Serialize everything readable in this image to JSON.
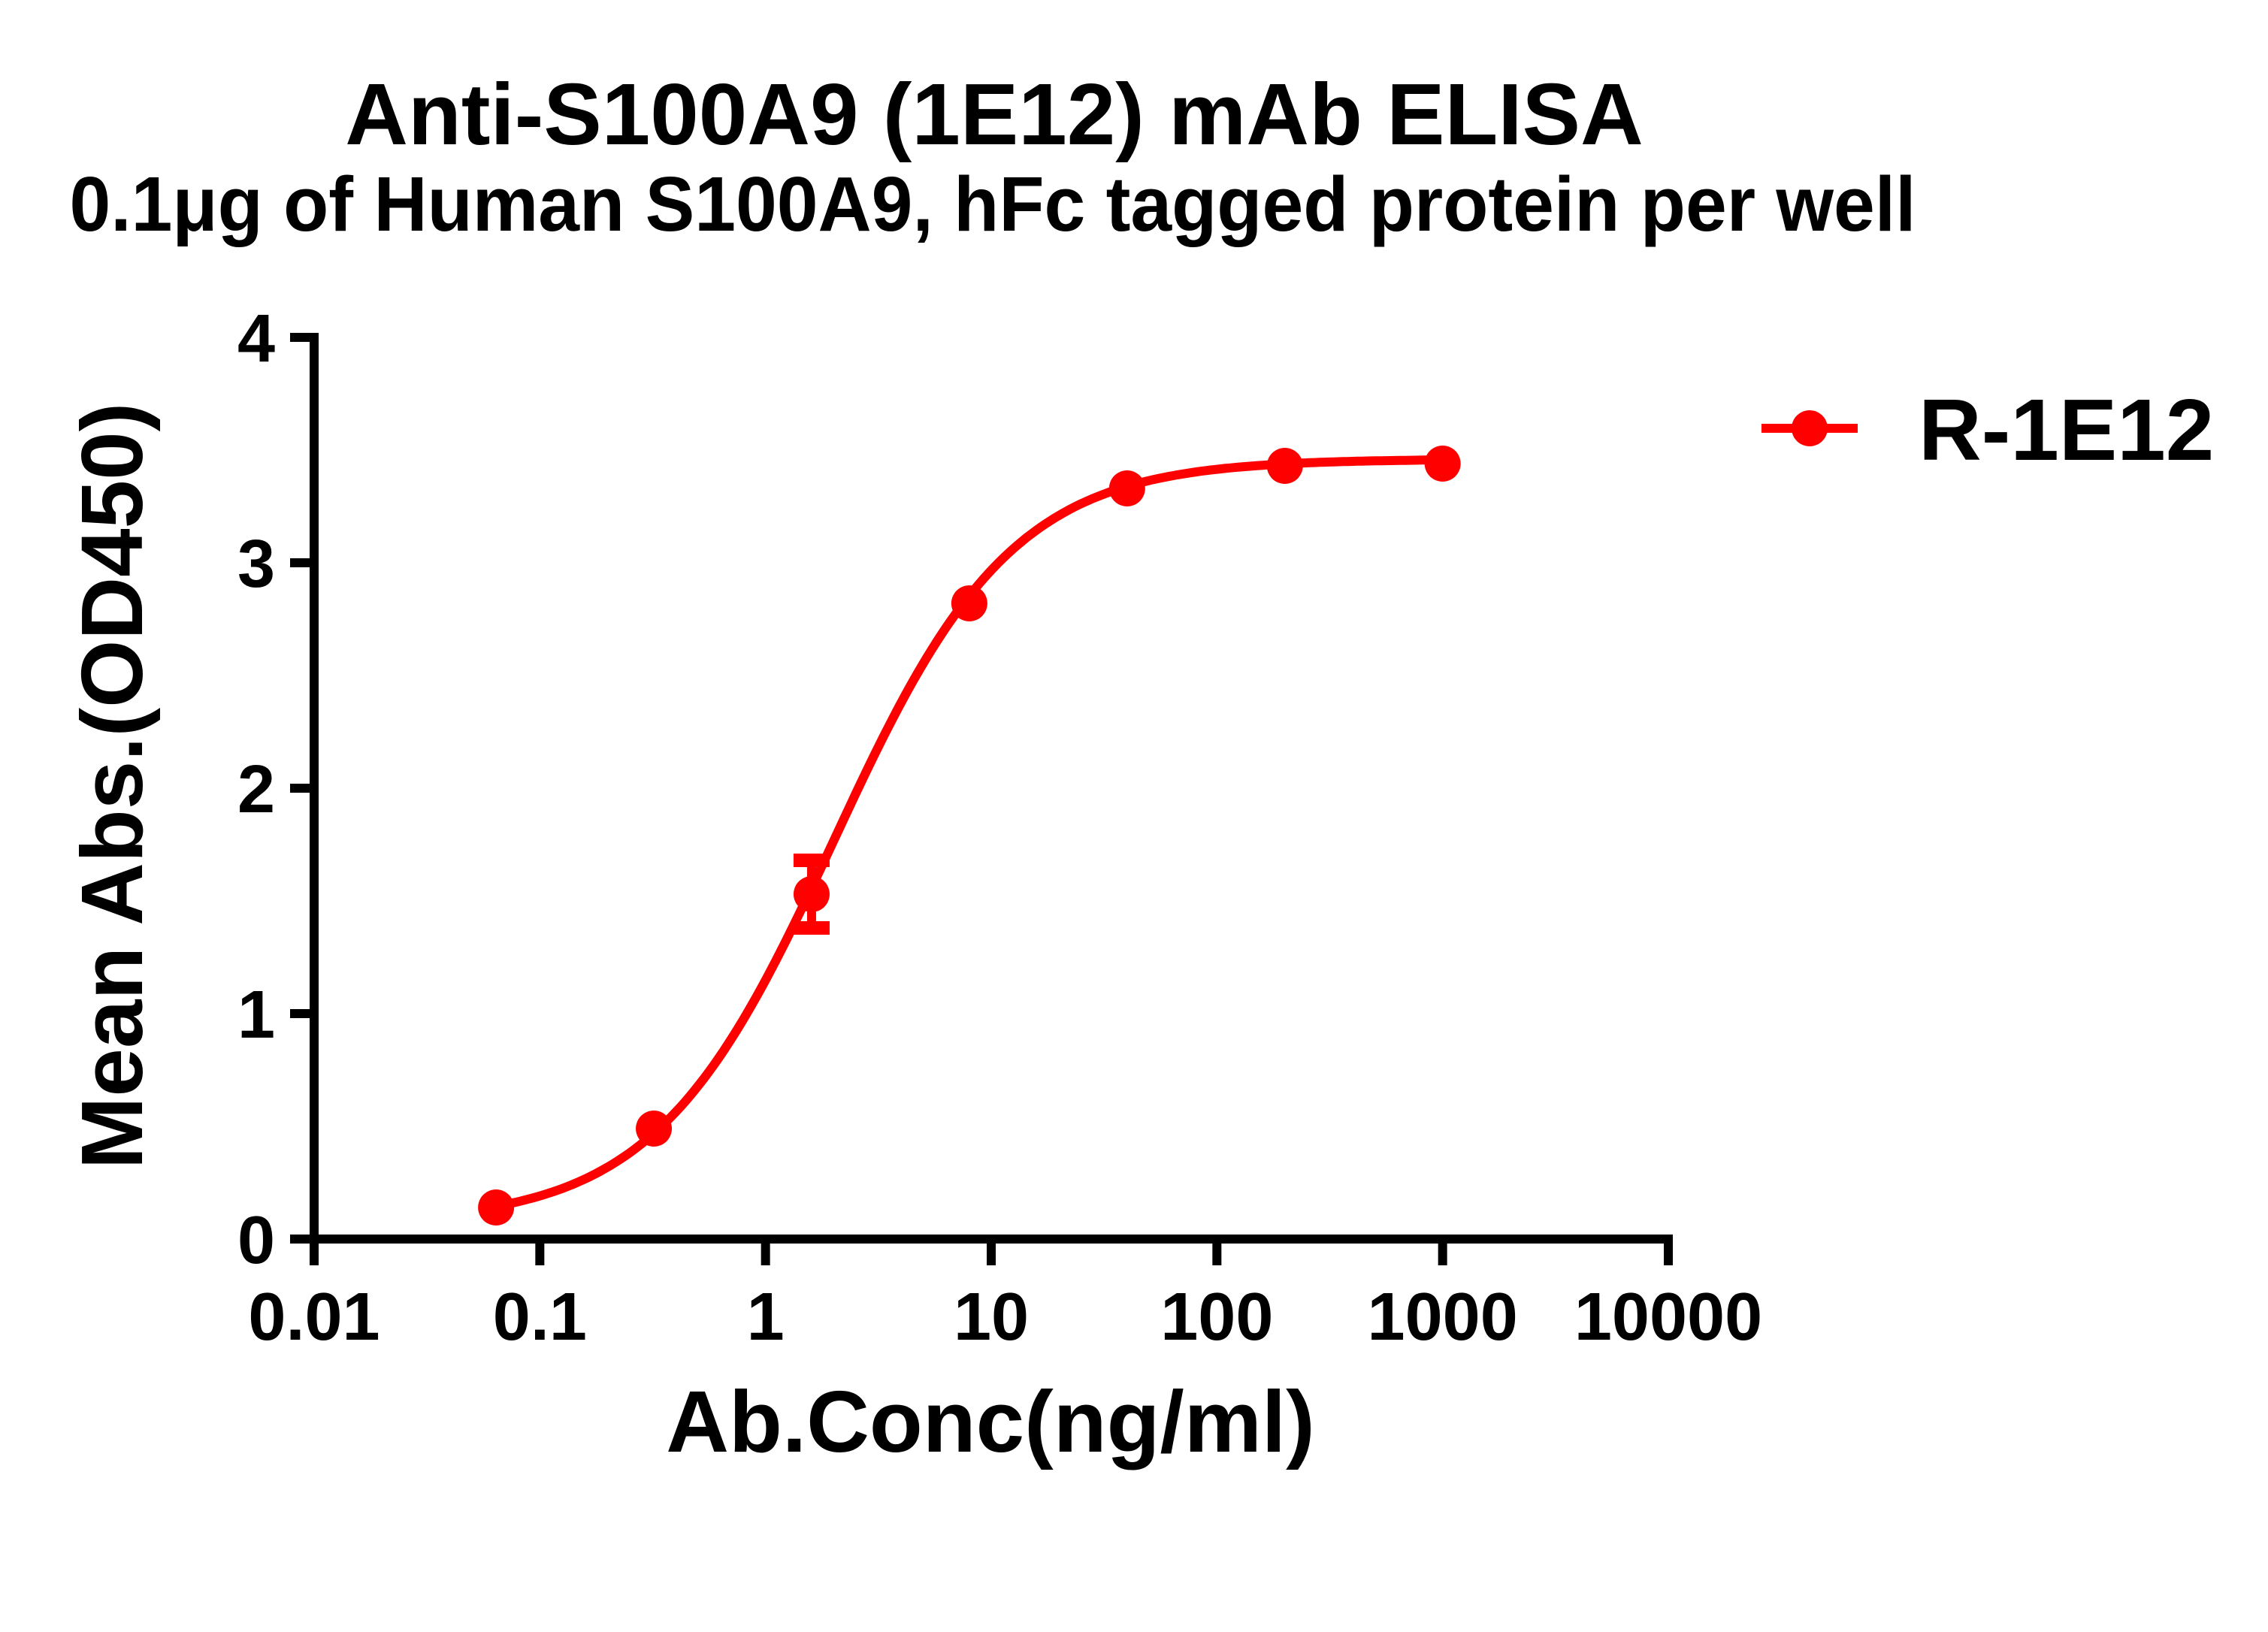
{
  "chart_data": {
    "type": "scatter",
    "title": "Anti-S100A9 (1E12) mAb ELISA",
    "subtitle": "0.1μg of Human S100A9, hFc tagged protein per well",
    "xlabel": "Ab.Conc(ng/ml)",
    "ylabel": "Mean Abs.(OD450)",
    "xscale": "log",
    "xlim": [
      0.01,
      10000
    ],
    "ylim": [
      0,
      4
    ],
    "xticks": [
      0.01,
      0.1,
      1,
      10,
      100,
      1000,
      10000
    ],
    "xtick_labels": [
      "0.01",
      "0.1",
      "1",
      "10",
      "100",
      "1000",
      "10000"
    ],
    "yticks": [
      0,
      1,
      2,
      3,
      4
    ],
    "ytick_labels": [
      "0",
      "1",
      "2",
      "3",
      "4"
    ],
    "grid": false,
    "legend_position": "right",
    "series": [
      {
        "name": "R-1E12",
        "color": "#ff0000",
        "marker": "circle",
        "x": [
          0.064,
          0.32,
          1.6,
          8,
          40,
          200,
          1000
        ],
        "y": [
          0.14,
          0.49,
          1.53,
          2.82,
          3.33,
          3.43,
          3.44
        ],
        "error": [
          0.02,
          0.02,
          0.15,
          0.03,
          0.03,
          0.02,
          0.02
        ],
        "fit": {
          "model": "4PL",
          "bottom": 0.07,
          "top": 3.46,
          "ec50": 2.0,
          "hill": 1.1
        }
      }
    ]
  },
  "legend": {
    "items": [
      {
        "label": "R-1E12",
        "color": "#ff0000"
      }
    ]
  },
  "colors": {
    "series": "#ff0000",
    "axis": "#000000",
    "background": "#ffffff"
  }
}
